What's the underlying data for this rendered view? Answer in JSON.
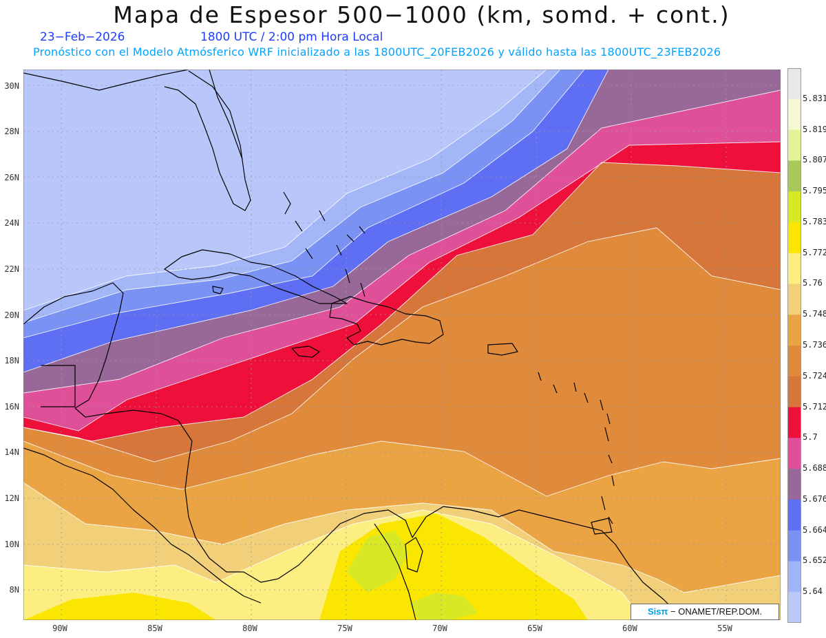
{
  "header": {
    "title": "Mapa de Espesor 500−1000 (km, somd. + cont.)",
    "date": "23−Feb−2026",
    "time": "1800 UTC / 2:00 pm Hora Local",
    "model_line": "Pronóstico con el Modelo Atmósferico WRF inicializado a las 1800UTC_20FEB2026 y válido hasta las  1800UTC_23FEB2026"
  },
  "axes": {
    "lat_labels": [
      "30N",
      "28N",
      "26N",
      "24N",
      "22N",
      "20N",
      "18N",
      "16N",
      "14N",
      "12N",
      "10N",
      "8N"
    ],
    "lon_labels": [
      "90W",
      "85W",
      "80W",
      "75W",
      "70W",
      "65W",
      "60W",
      "55W"
    ]
  },
  "colorbar": {
    "labels": [
      "5.831",
      "5.819",
      "5.807",
      "5.795",
      "5.783",
      "5.772",
      "5.76",
      "5.748",
      "5.736",
      "5.724",
      "5.712",
      "5.7",
      "5.688",
      "5.676",
      "5.664",
      "5.652",
      "5.64"
    ],
    "colors": [
      "#e8e8e8",
      "#f5f8d2",
      "#e4f39a",
      "#a8c858",
      "#d8e825",
      "#fae600",
      "#fcee80",
      "#f2d07a",
      "#eba444",
      "#e08a3c",
      "#d6763a",
      "#ee0f3a",
      "#e05098",
      "#986898",
      "#5e6ff4",
      "#7a92f4",
      "#a0b4f8",
      "#bcc8f8"
    ]
  },
  "credit": {
    "sis": "Sis",
    "pi": "π",
    "rest": " − ONAMET/REP.DOM."
  }
}
